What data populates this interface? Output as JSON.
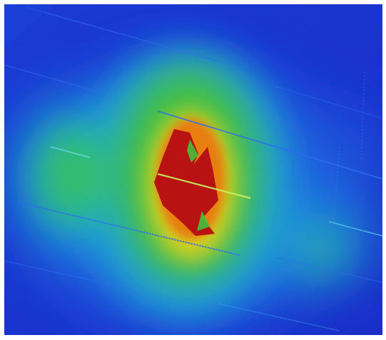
{
  "map": {
    "kind": "heatmap-overlay",
    "colors": {
      "background_low": "#1a2fd0",
      "low": "#1f5fe0",
      "low_mid": "#1aa6d8",
      "mid": "#22c49a",
      "mid_high": "#44c23a",
      "high": "#e6d21f",
      "very_high": "#e87a12",
      "peak": "#b81212",
      "frame": "#ffffff"
    },
    "hotspots": [
      {
        "name": "central-peak",
        "intensity": 1.0
      },
      {
        "name": "west-lobe",
        "intensity": 0.45
      },
      {
        "name": "east-lobe",
        "intensity": 0.35
      }
    ],
    "scan_lines": {
      "count": 9,
      "color_main": "#2f6cf0",
      "color_hot": "#c8f060"
    }
  }
}
